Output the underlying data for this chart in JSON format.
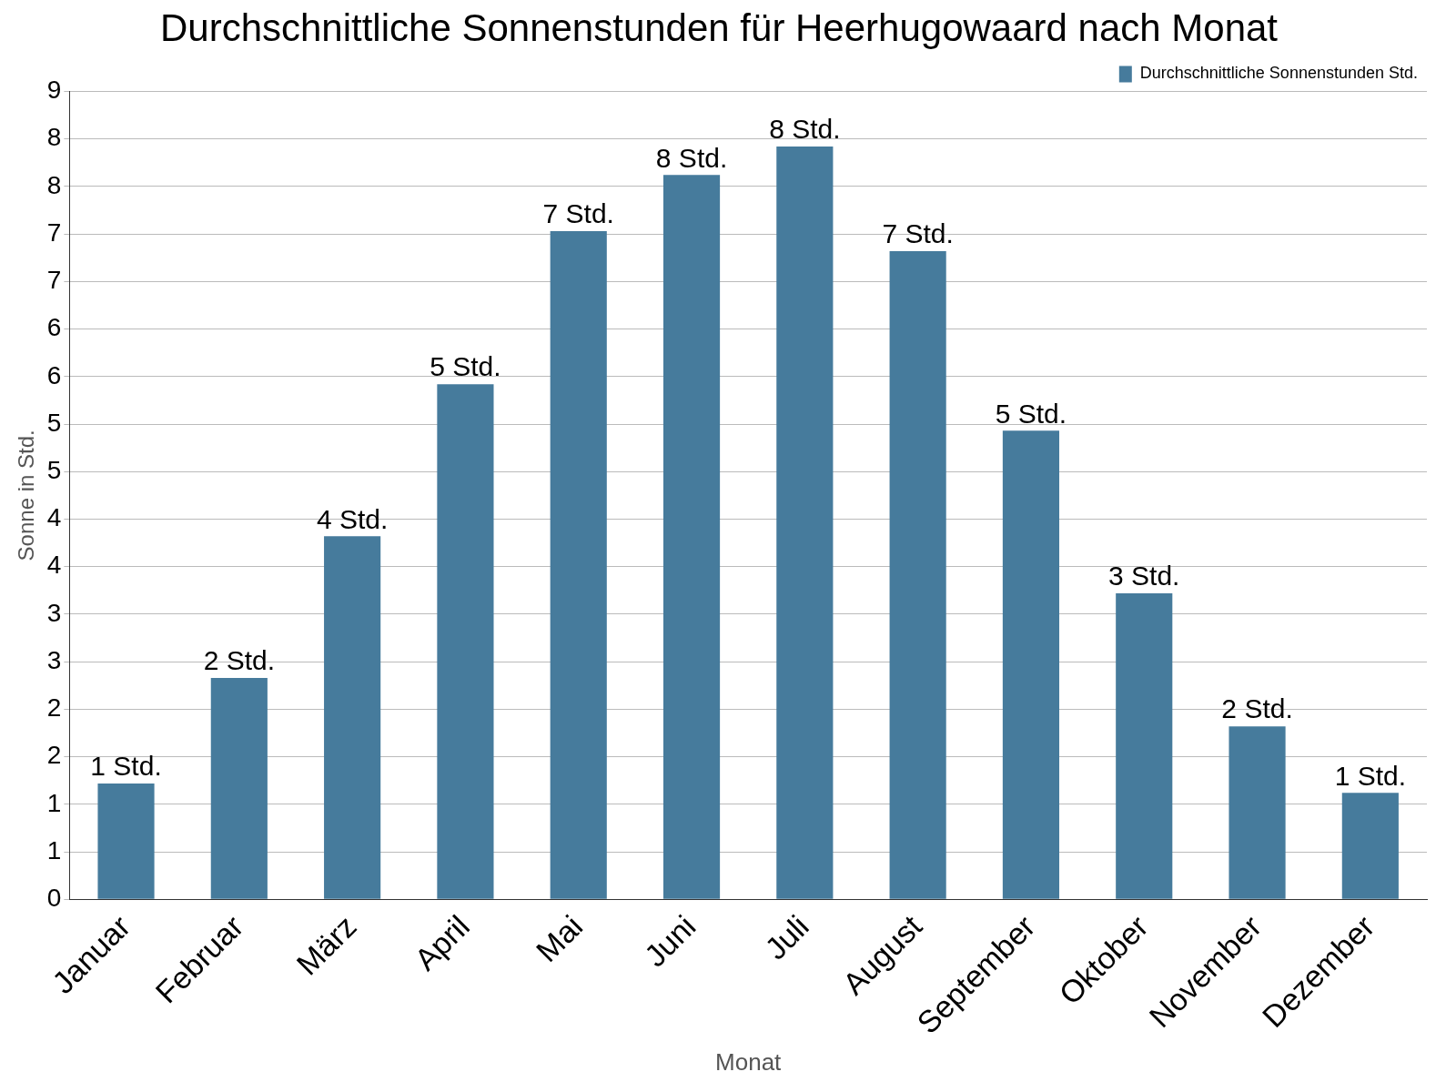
{
  "chart_data": {
    "type": "bar",
    "title": "Durchschnittliche Sonnenstunden für Heerhugowaard nach Monat",
    "xlabel": "Monat",
    "ylabel": "Sonne in Std.",
    "categories": [
      "Januar",
      "Februar",
      "März",
      "April",
      "Mai",
      "Juni",
      "Juli",
      "August",
      "September",
      "Oktober",
      "November",
      "Dezember"
    ],
    "series": [
      {
        "name": "Durchschnittliche Sonnenstunden Std.",
        "color": "#467b9c",
        "values": [
          1.22,
          2.33,
          3.82,
          5.42,
          7.03,
          7.62,
          7.92,
          6.82,
          4.93,
          3.22,
          1.82,
          1.12
        ],
        "value_labels": [
          "1 Std.",
          "2 Std.",
          "4 Std.",
          "5 Std.",
          "7 Std.",
          "8 Std.",
          "8 Std.",
          "7 Std.",
          "5 Std.",
          "3 Std.",
          "2 Std.",
          "1 Std."
        ]
      }
    ],
    "ylim": [
      0,
      8.5
    ],
    "yticks": [
      0,
      {
        "value": 0.5,
        "label": "1"
      },
      1,
      {
        "value": 1.5,
        "label": "2"
      },
      2,
      {
        "value": 2.5,
        "label": "3"
      },
      3,
      {
        "value": 3.5,
        "label": "4"
      },
      4,
      {
        "value": 4.5,
        "label": "5"
      },
      5,
      {
        "value": 5.5,
        "label": "6"
      },
      6,
      {
        "value": 6.5,
        "label": "7"
      },
      7,
      {
        "value": 7.5,
        "label": "8"
      },
      8,
      {
        "value": 8.5,
        "label": "9"
      }
    ],
    "grid": "y",
    "legend": "top right"
  }
}
